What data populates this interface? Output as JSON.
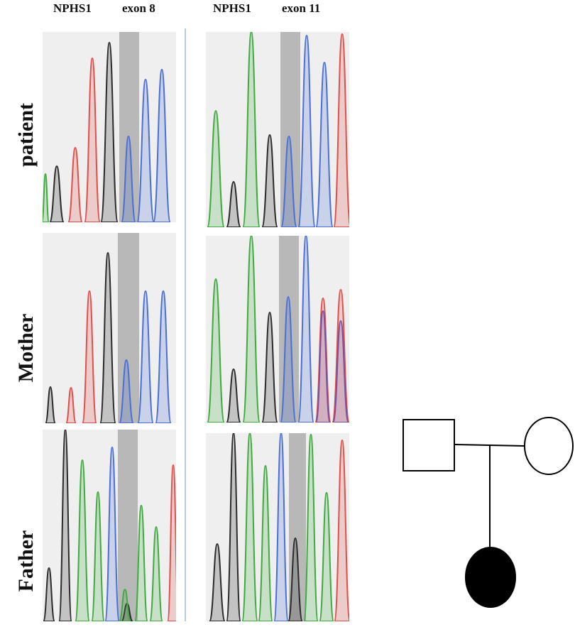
{
  "columns": [
    {
      "gene": "NPHS1",
      "exon": "exon 8"
    },
    {
      "gene": "NPHS1",
      "exon": "exon 11"
    }
  ],
  "rows": [
    {
      "label": "patient"
    },
    {
      "label": "Mother"
    },
    {
      "label": "Father"
    }
  ],
  "colors": {
    "black_trace": "#2b2b2b",
    "red_trace": "#e0504a",
    "green_trace": "#3faa3f",
    "blue_trace": "#4a6fd6",
    "purple_trace": "#7a4fa0",
    "highlight_band": "#b8b8b8",
    "panel_bg": "#efefef",
    "divider": "#b9c9e6"
  },
  "pedigree": {
    "father": {
      "shape": "square",
      "affected": false
    },
    "mother": {
      "shape": "circle",
      "affected": false
    },
    "child": {
      "shape": "circle",
      "affected": true
    }
  }
}
